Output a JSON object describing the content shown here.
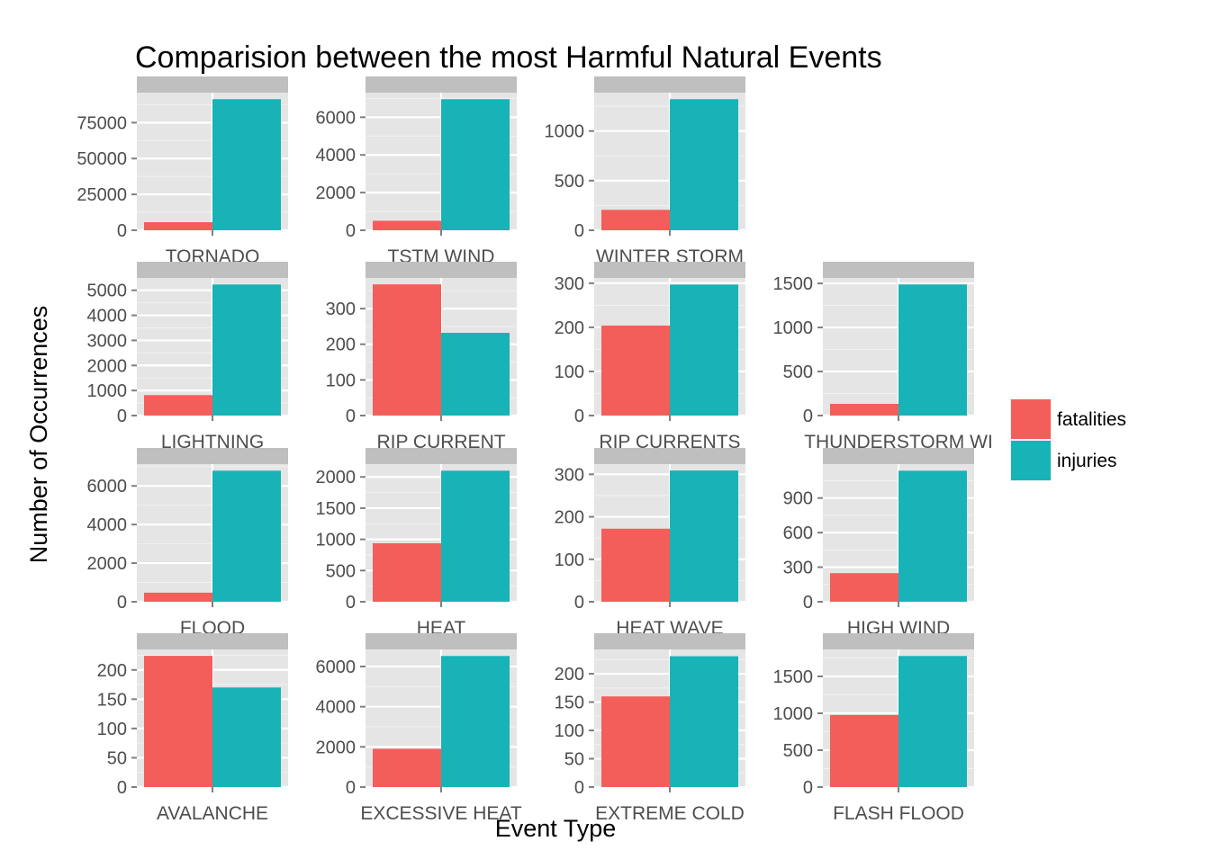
{
  "chart_data": {
    "type": "bar",
    "title": "Comparision between the most Harmful Natural Events",
    "xlabel": "Event Type",
    "ylabel": "Number of Occurrences",
    "legend": {
      "position": "right",
      "entries": [
        {
          "name": "fatalities",
          "color": "#F35E5A"
        },
        {
          "name": "injuries",
          "color": "#17B3B7"
        }
      ]
    },
    "series_names": [
      "fatalities",
      "injuries"
    ],
    "panels": [
      {
        "event": "TORNADO",
        "values": [
          5633,
          91346
        ],
        "ticks": [
          0,
          25000,
          50000,
          75000
        ],
        "ylim": [
          0,
          95913
        ]
      },
      {
        "event": "TSTM WIND",
        "values": [
          504,
          6957
        ],
        "ticks": [
          0,
          2000,
          4000,
          6000
        ],
        "ylim": [
          0,
          7305
        ]
      },
      {
        "event": "WINTER STORM",
        "values": [
          206,
          1321
        ],
        "ticks": [
          0,
          500,
          1000
        ],
        "ylim": [
          0,
          1387
        ]
      },
      {
        "event": "LIGHTNING",
        "values": [
          816,
          5230
        ],
        "ticks": [
          0,
          1000,
          2000,
          3000,
          4000,
          5000
        ],
        "ylim": [
          0,
          5492
        ]
      },
      {
        "event": "RIP CURRENT",
        "values": [
          368,
          232
        ],
        "ticks": [
          0,
          100,
          200,
          300
        ],
        "ylim": [
          0,
          386
        ]
      },
      {
        "event": "RIP CURRENTS",
        "values": [
          204,
          297
        ],
        "ticks": [
          0,
          100,
          200,
          300
        ],
        "ylim": [
          0,
          312
        ]
      },
      {
        "event": "THUNDERSTORM WI",
        "values": [
          133,
          1488
        ],
        "ticks": [
          0,
          500,
          1000,
          1500
        ],
        "ylim": [
          0,
          1562
        ]
      },
      {
        "event": "FLOOD",
        "values": [
          470,
          6789
        ],
        "ticks": [
          0,
          2000,
          4000,
          6000
        ],
        "ylim": [
          0,
          7128
        ]
      },
      {
        "event": "HEAT",
        "values": [
          937,
          2100
        ],
        "ticks": [
          0,
          500,
          1000,
          1500,
          2000
        ],
        "ylim": [
          0,
          2205
        ]
      },
      {
        "event": "HEAT WAVE",
        "values": [
          172,
          309
        ],
        "ticks": [
          0,
          100,
          200,
          300
        ],
        "ylim": [
          0,
          324
        ]
      },
      {
        "event": "HIGH WIND",
        "values": [
          248,
          1137
        ],
        "ticks": [
          0,
          300,
          600,
          900
        ],
        "ylim": [
          0,
          1194
        ]
      },
      {
        "event": "AVALANCHE",
        "values": [
          224,
          170
        ],
        "ticks": [
          0,
          50,
          100,
          150,
          200
        ],
        "ylim": [
          0,
          235
        ]
      },
      {
        "event": "EXCESSIVE HEAT",
        "values": [
          1903,
          6525
        ],
        "ticks": [
          0,
          2000,
          4000,
          6000
        ],
        "ylim": [
          0,
          6851
        ]
      },
      {
        "event": "EXTREME COLD",
        "values": [
          160,
          231
        ],
        "ticks": [
          0,
          50,
          100,
          150,
          200
        ],
        "ylim": [
          0,
          243
        ]
      },
      {
        "event": "FLASH FLOOD",
        "values": [
          978,
          1777
        ],
        "ticks": [
          0,
          500,
          1000,
          1500
        ],
        "ylim": [
          0,
          1866
        ]
      }
    ]
  }
}
